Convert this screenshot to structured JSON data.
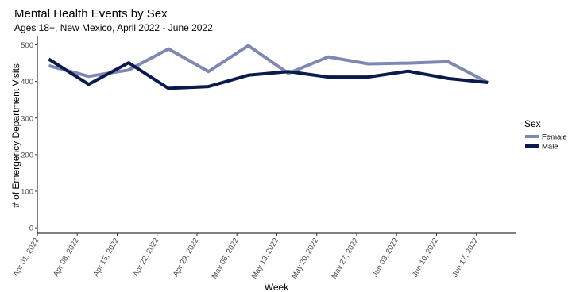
{
  "chart_data": {
    "type": "line",
    "title": "Mental Health Events by Sex",
    "subtitle": "Ages 18+, New Mexico, April 2022 - June 2022",
    "xlabel": "Week",
    "ylabel": "# of Emergency Department Visits",
    "x_ticks": [
      "Apr 01, 2022",
      "Apr 08, 2022",
      "Apr 15, 2022",
      "Apr 22, 2022",
      "Apr 29, 2022",
      "May 06, 2022",
      "May 13, 2022",
      "May 20, 2022",
      "May 27, 2022",
      "Jun 03, 2022",
      "Jun 10, 2022",
      "Jun 17, 2022"
    ],
    "y_ticks": [
      0,
      100,
      200,
      300,
      400,
      500
    ],
    "ylim": [
      -15,
      525
    ],
    "xlim": [
      "2022-04-01",
      "2022-06-24"
    ],
    "grid": false,
    "legend_title": "Sex",
    "legend_position": "right",
    "x": [
      "2022-04-03",
      "2022-04-10",
      "2022-04-17",
      "2022-04-24",
      "2022-05-01",
      "2022-05-08",
      "2022-05-15",
      "2022-05-22",
      "2022-05-29",
      "2022-06-05",
      "2022-06-12",
      "2022-06-19"
    ],
    "series": [
      {
        "name": "Female",
        "color": "#7f88b3",
        "values": [
          443,
          414,
          431,
          489,
          427,
          498,
          422,
          467,
          448,
          450,
          454,
          397
        ]
      },
      {
        "name": "Male",
        "color": "#0b1a4d",
        "values": [
          461,
          392,
          451,
          381,
          386,
          417,
          427,
          412,
          412,
          428,
          408,
          397
        ]
      }
    ]
  }
}
